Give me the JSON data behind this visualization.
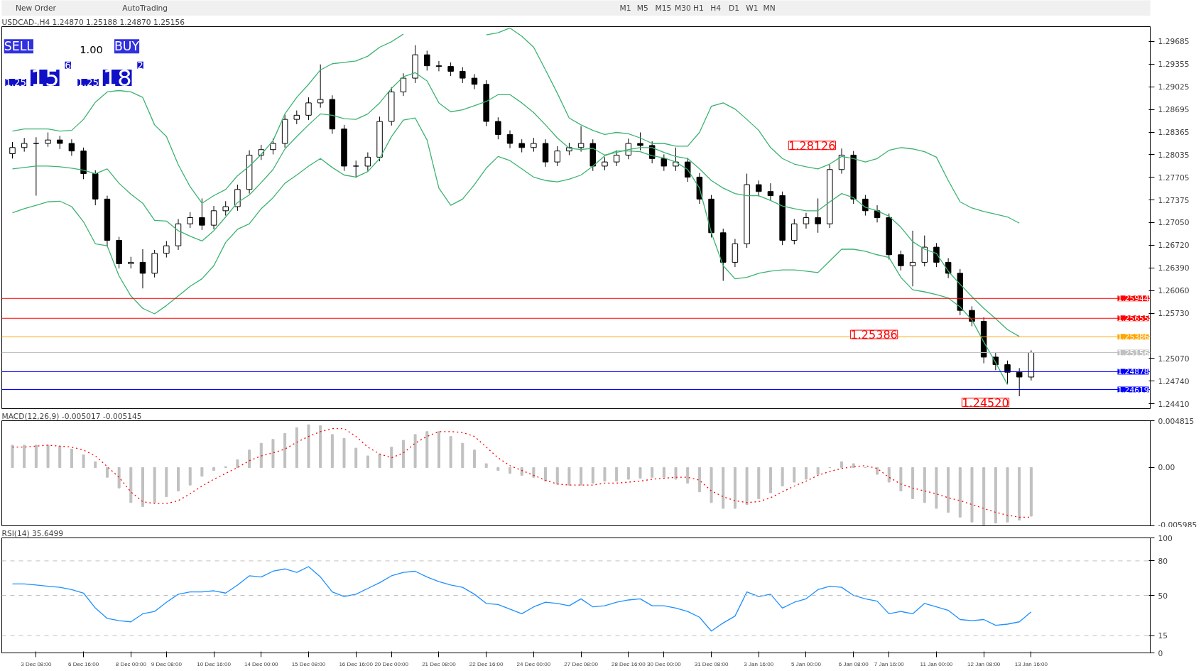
{
  "chart_data": [
    {
      "type": "other",
      "annotations": [
        "New Order",
        "AutoTrading",
        "M1",
        "M5",
        "M15",
        "M30",
        "H1",
        "H4",
        "D1",
        "W1",
        "MN"
      ]
    },
    {
      "type": "candlestick",
      "title": "USDCAD-,H4  1.24870 1.25188 1.24870 1.25156",
      "tick_labels": "y",
      "grid": false,
      "ohlc": [
        [
          1.2805,
          1.2822,
          1.2798,
          1.2814
        ],
        [
          1.2814,
          1.2828,
          1.2808,
          1.282
        ],
        [
          1.282,
          1.2829,
          1.2744,
          1.282
        ],
        [
          1.282,
          1.2836,
          1.2815,
          1.2825
        ],
        [
          1.2825,
          1.2831,
          1.2812,
          1.282
        ],
        [
          1.282,
          1.2826,
          1.2802,
          1.2809
        ],
        [
          1.2809,
          1.2814,
          1.2768,
          1.2776
        ],
        [
          1.2776,
          1.2781,
          1.273,
          1.2739
        ],
        [
          1.2739,
          1.2744,
          1.267,
          1.2679
        ],
        [
          1.2679,
          1.2684,
          1.2638,
          1.2645
        ],
        [
          1.2645,
          1.2655,
          1.2638,
          1.2647
        ],
        [
          1.2647,
          1.2666,
          1.2609,
          1.2631
        ],
        [
          1.2631,
          1.2665,
          1.2625,
          1.266
        ],
        [
          1.266,
          1.2678,
          1.2654,
          1.2671
        ],
        [
          1.2671,
          1.271,
          1.2665,
          1.2703
        ],
        [
          1.2703,
          1.272,
          1.2697,
          1.2712
        ],
        [
          1.2712,
          1.274,
          1.2694,
          1.2701
        ],
        [
          1.2701,
          1.2729,
          1.2695,
          1.2722
        ],
        [
          1.2722,
          1.2736,
          1.2715,
          1.2728
        ],
        [
          1.2728,
          1.276,
          1.2722,
          1.2753
        ],
        [
          1.2753,
          1.281,
          1.2747,
          1.2803
        ],
        [
          1.2803,
          1.2818,
          1.2796,
          1.2811
        ],
        [
          1.2811,
          1.2827,
          1.2804,
          1.282
        ],
        [
          1.282,
          1.2862,
          1.2814,
          1.2855
        ],
        [
          1.2855,
          1.2868,
          1.2848,
          1.2861
        ],
        [
          1.2861,
          1.2887,
          1.2854,
          1.2879
        ],
        [
          1.2879,
          1.2935,
          1.2872,
          1.2884
        ],
        [
          1.2884,
          1.289,
          1.2834,
          1.2841
        ],
        [
          1.2841,
          1.2847,
          1.278,
          1.2787
        ],
        [
          1.2787,
          1.2795,
          1.277,
          1.2787
        ],
        [
          1.2787,
          1.2807,
          1.278,
          1.28
        ],
        [
          1.28,
          1.2859,
          1.2794,
          1.2852
        ],
        [
          1.2852,
          1.2902,
          1.2846,
          1.2895
        ],
        [
          1.2895,
          1.2922,
          1.2889,
          1.2915
        ],
        [
          1.2915,
          1.2963,
          1.2908,
          1.2949
        ],
        [
          1.2949,
          1.2955,
          1.2926,
          1.2933
        ],
        [
          1.2933,
          1.294,
          1.2925,
          1.2932
        ],
        [
          1.2932,
          1.2938,
          1.2918,
          1.2925
        ],
        [
          1.2925,
          1.2931,
          1.2908,
          1.2915
        ],
        [
          1.2915,
          1.2921,
          1.2899,
          1.2906
        ],
        [
          1.2906,
          1.2912,
          1.2845,
          1.2852
        ],
        [
          1.2852,
          1.2858,
          1.2826,
          1.2833
        ],
        [
          1.2833,
          1.2839,
          1.2813,
          1.282
        ],
        [
          1.282,
          1.2826,
          1.2807,
          1.2814
        ],
        [
          1.2814,
          1.2828,
          1.2808,
          1.282
        ],
        [
          1.282,
          1.2826,
          1.2786,
          1.2793
        ],
        [
          1.2793,
          1.2816,
          1.2787,
          1.2809
        ],
        [
          1.2809,
          1.2821,
          1.2803,
          1.2814
        ],
        [
          1.2814,
          1.2845,
          1.2808,
          1.282
        ],
        [
          1.282,
          1.2826,
          1.278,
          1.2787
        ],
        [
          1.2787,
          1.28,
          1.2781,
          1.2793
        ],
        [
          1.2793,
          1.281,
          1.2787,
          1.2803
        ],
        [
          1.2803,
          1.2827,
          1.2797,
          1.282
        ],
        [
          1.282,
          1.2836,
          1.281,
          1.2817
        ],
        [
          1.2817,
          1.2823,
          1.2791,
          1.2798
        ],
        [
          1.2798,
          1.2804,
          1.278,
          1.2787
        ],
        [
          1.2787,
          1.2814,
          1.278,
          1.2793
        ],
        [
          1.2793,
          1.2799,
          1.2764,
          1.2771
        ],
        [
          1.2771,
          1.2777,
          1.2732,
          1.2739
        ],
        [
          1.2739,
          1.2745,
          1.2683,
          1.269
        ],
        [
          1.269,
          1.2696,
          1.262,
          1.2647
        ],
        [
          1.2647,
          1.2681,
          1.264,
          1.2674
        ],
        [
          1.2674,
          1.2776,
          1.2668,
          1.276
        ],
        [
          1.276,
          1.2766,
          1.2743,
          1.275
        ],
        [
          1.275,
          1.2762,
          1.2737,
          1.2744
        ],
        [
          1.2744,
          1.275,
          1.2672,
          1.2679
        ],
        [
          1.2679,
          1.271,
          1.2673,
          1.2703
        ],
        [
          1.2703,
          1.2719,
          1.2696,
          1.2712
        ],
        [
          1.2712,
          1.274,
          1.269,
          1.2703
        ],
        [
          1.2703,
          1.2789,
          1.2697,
          1.2782
        ],
        [
          1.2782,
          1.28126,
          1.2776,
          1.2803
        ],
        [
          1.2803,
          1.2809,
          1.2732,
          1.2739
        ],
        [
          1.2739,
          1.2745,
          1.2715,
          1.2722
        ],
        [
          1.2722,
          1.273,
          1.2705,
          1.2712
        ],
        [
          1.2712,
          1.2718,
          1.2651,
          1.2658
        ],
        [
          1.2658,
          1.2664,
          1.2635,
          1.2642
        ],
        [
          1.2642,
          1.2693,
          1.2612,
          1.2647
        ],
        [
          1.2647,
          1.2686,
          1.2641,
          1.2669
        ],
        [
          1.2669,
          1.2675,
          1.264,
          1.2647
        ],
        [
          1.2647,
          1.2653,
          1.2624,
          1.2631
        ],
        [
          1.2631,
          1.2637,
          1.257,
          1.2577
        ],
        [
          1.2577,
          1.2583,
          1.2554,
          1.2561
        ],
        [
          1.2561,
          1.2567,
          1.25,
          1.2509
        ],
        [
          1.2509,
          1.2515,
          1.249,
          1.2498
        ],
        [
          1.2498,
          1.2504,
          1.247,
          1.2487
        ],
        [
          1.2487,
          1.2493,
          1.2452,
          1.248
        ],
        [
          1.248,
          1.25188,
          1.2475,
          1.25156
        ],
        null,
        null,
        null,
        null,
        null,
        null,
        null,
        null,
        null,
        null
      ],
      "series": [
        {
          "type": "line",
          "color": "#3cb371",
          "values": [
            1.2838,
            1.2841,
            1.2841,
            1.2841,
            1.2838,
            1.2839,
            1.2855,
            1.288,
            1.2895,
            1.2897,
            1.2895,
            1.2887,
            1.2847,
            1.283,
            1.2789,
            1.2757,
            1.2733,
            1.2744,
            1.2753,
            1.2773,
            1.2787,
            1.2804,
            1.2824,
            1.2863,
            1.2887,
            1.2906,
            1.2927,
            1.2936,
            1.2938,
            1.294,
            1.2947,
            1.296,
            1.2968,
            1.2979,
            null,
            null,
            null,
            null,
            null,
            null,
            1.2978,
            1.2981,
            1.2988,
            1.2976,
            1.296,
            1.2927,
            1.2893,
            1.2857,
            1.2847,
            1.2839,
            1.2833,
            1.2836,
            1.2834,
            1.2828,
            1.282,
            1.282,
            1.2816,
            1.2816,
            1.2836,
            1.2874,
            1.2879,
            1.287,
            1.2855,
            1.2839,
            1.2814,
            1.2798,
            1.279,
            1.2786,
            1.2783,
            1.279,
            1.2801,
            1.2798,
            1.2793,
            1.2798,
            1.281,
            1.2814,
            1.2812,
            1.2808,
            1.28,
            1.2766,
            1.2735,
            1.2726,
            1.2721,
            1.2717,
            1.2713,
            1.2704,
            null,
            null,
            null,
            null,
            null,
            null,
            null,
            null,
            null,
            null,
            null
          ]
        },
        {
          "type": "line",
          "color": "#3cb371",
          "values": [
            1.2783,
            1.2785,
            1.2787,
            1.2787,
            1.2786,
            1.2784,
            1.2781,
            1.2776,
            1.2783,
            1.2762,
            1.2746,
            1.2733,
            1.2708,
            1.2707,
            1.2693,
            1.2685,
            1.2678,
            1.2693,
            1.2713,
            1.2734,
            1.2745,
            1.2763,
            1.2782,
            1.2812,
            1.283,
            1.2847,
            1.2863,
            1.2861,
            1.2856,
            1.2855,
            1.2863,
            1.2879,
            1.29,
            1.2917,
            1.2923,
            1.2911,
            1.2879,
            1.2866,
            1.2869,
            1.2875,
            1.2881,
            1.2891,
            1.2891,
            1.2879,
            1.2865,
            1.2847,
            1.2828,
            1.2813,
            1.2811,
            1.2813,
            1.2803,
            1.2807,
            1.2811,
            1.2814,
            1.2814,
            1.2807,
            1.2801,
            1.2798,
            1.2783,
            1.2766,
            1.2755,
            1.2747,
            1.2744,
            1.2744,
            1.2737,
            1.2729,
            1.2725,
            1.2722,
            1.2722,
            1.2735,
            1.2747,
            1.2741,
            1.2727,
            1.2722,
            1.2714,
            1.2698,
            1.2677,
            1.2666,
            1.266,
            1.2634,
            1.2615,
            1.2597,
            1.258,
            1.2565,
            1.2549,
            1.2539,
            null,
            null,
            null,
            null,
            null,
            null,
            null,
            null,
            null,
            null,
            null
          ]
        },
        {
          "type": "line",
          "color": "#3cb371",
          "values": [
            1.2719,
            1.2725,
            1.273,
            1.2735,
            1.2736,
            1.2728,
            1.2706,
            1.2674,
            1.2671,
            1.2627,
            1.2598,
            1.258,
            1.2572,
            1.2584,
            1.2598,
            1.2612,
            1.2623,
            1.2642,
            1.2676,
            1.2695,
            1.2703,
            1.2725,
            1.2741,
            1.2762,
            1.2774,
            1.2787,
            1.2798,
            1.2785,
            1.2774,
            1.2771,
            1.2779,
            1.2798,
            1.283,
            1.2854,
            1.2857,
            1.2825,
            1.2755,
            1.273,
            1.2739,
            1.276,
            1.2784,
            1.2801,
            1.2795,
            1.2783,
            1.2771,
            1.2766,
            1.2764,
            1.2768,
            1.2774,
            1.2787,
            1.2802,
            1.2809,
            1.2809,
            1.2808,
            1.2802,
            1.2799,
            1.2793,
            1.2782,
            1.2755,
            1.269,
            1.2642,
            1.2623,
            1.2625,
            1.2631,
            1.2634,
            1.2636,
            1.2636,
            1.2634,
            1.2632,
            1.2649,
            1.2666,
            1.2666,
            1.2663,
            1.2658,
            1.2654,
            1.2625,
            1.2607,
            1.2604,
            1.26,
            1.2595,
            1.2582,
            1.2563,
            1.2531,
            1.2501,
            1.2469,
            null,
            null,
            null,
            null,
            null,
            null,
            null,
            null,
            null,
            null,
            null,
            null
          ]
        }
      ],
      "ylim": [
        1.2434,
        1.299
      ],
      "yticks": [
        {
          "value": 1.2441,
          "label": "1.24410"
        },
        {
          "value": 1.2474,
          "label": "1.24740"
        },
        {
          "value": 1.2507,
          "label": "1.25070"
        },
        {
          "value": 1.2573,
          "label": "1.25730"
        },
        {
          "value": 1.2606,
          "label": "1.26060"
        },
        {
          "value": 1.2639,
          "label": "1.26390"
        },
        {
          "value": 1.2672,
          "label": "1.26720"
        },
        {
          "value": 1.2705,
          "label": "1.27050"
        },
        {
          "value": 1.27375,
          "label": "1.27375"
        },
        {
          "value": 1.27705,
          "label": "1.27705"
        },
        {
          "value": 1.28035,
          "label": "1.28035"
        },
        {
          "value": 1.28365,
          "label": "1.28365"
        },
        {
          "value": 1.28695,
          "label": "1.28695"
        },
        {
          "value": 1.29025,
          "label": "1.29025"
        },
        {
          "value": 1.29355,
          "label": "1.29355"
        },
        {
          "value": 1.29685,
          "label": "1.29685"
        }
      ],
      "ref_lines": [
        {
          "axis": "y",
          "value": 1.25944,
          "label": "1.25944",
          "color": "#ff0000"
        },
        {
          "axis": "y",
          "value": 1.25655,
          "label": "1.25655",
          "color": "#ff0000"
        },
        {
          "axis": "y",
          "value": 1.25386,
          "label": "1.25386",
          "color": "#ffa500"
        },
        {
          "axis": "y",
          "value": 1.25156,
          "label": "1.25156",
          "color": "#c0c0c0"
        },
        {
          "axis": "y",
          "value": 1.24878,
          "label": "1.24878",
          "color": "#0000ff"
        },
        {
          "axis": "y",
          "value": 1.24619,
          "label": "1.24619",
          "color": "#0000ff"
        }
      ],
      "annotations": [
        "SELL",
        "1.00",
        "BUY",
        "1.25",
        "15",
        "6",
        "1.25",
        "18",
        "2",
        "1.28126",
        "1.25386",
        "1.24520"
      ]
    },
    {
      "type": "bar",
      "title": "MACD(12,26,9) -0.005017 -0.005145",
      "tick_labels": "y",
      "grid": false,
      "series": [
        {
          "type": "bar",
          "color": "#c0c0c0",
          "values": [
            0.0023,
            0.0023,
            0.0023,
            0.0023,
            0.0022,
            0.0019,
            0.0013,
            0.0006,
            -0.001,
            -0.0021,
            -0.0036,
            -0.004,
            -0.0036,
            -0.003,
            -0.0024,
            -0.0018,
            -0.0009,
            -0.0003,
            0.0001,
            0.0008,
            0.0018,
            0.0025,
            0.0029,
            0.0035,
            0.0041,
            0.0044,
            0.0043,
            0.0034,
            0.003,
            0.002,
            0.0012,
            0.0014,
            0.0021,
            0.0028,
            0.0034,
            0.0037,
            0.0037,
            0.0032,
            0.0025,
            0.0018,
            0.0004,
            -0.0003,
            -0.0006,
            -0.0008,
            -0.001,
            -0.0014,
            -0.0017,
            -0.0018,
            -0.0018,
            -0.0016,
            -0.0014,
            -0.0014,
            -0.0012,
            -0.0011,
            -0.001,
            -0.001,
            -0.0012,
            -0.0016,
            -0.0025,
            -0.0036,
            -0.0042,
            -0.0042,
            -0.0038,
            -0.0032,
            -0.0026,
            -0.0019,
            -0.0015,
            -0.0012,
            -0.0007,
            0.0,
            0.0006,
            0.0004,
            0.0,
            -0.0007,
            -0.0015,
            -0.0024,
            -0.0032,
            -0.0036,
            -0.0042,
            -0.0046,
            -0.0051,
            -0.0056,
            -0.0059,
            -0.0057,
            -0.0056,
            -0.0054,
            -0.005,
            null,
            null,
            null,
            null,
            null,
            null,
            null,
            null,
            null,
            null
          ]
        },
        {
          "type": "line",
          "color": "#ff0000",
          "line_style": "dotted",
          "values": [
            0.0021,
            0.0021,
            0.0022,
            0.0023,
            0.0022,
            0.0021,
            0.0018,
            0.0012,
            0.0001,
            -0.001,
            -0.0025,
            -0.0035,
            -0.0037,
            -0.0037,
            -0.0034,
            -0.0027,
            -0.0019,
            -0.0012,
            -0.0006,
            0.0,
            0.0007,
            0.0012,
            0.0015,
            0.0019,
            0.0026,
            0.0032,
            0.0037,
            0.004,
            0.004,
            0.0032,
            0.0021,
            0.0014,
            0.001,
            0.0015,
            0.0025,
            0.0032,
            0.0037,
            0.0037,
            0.0036,
            0.0032,
            0.0021,
            0.001,
            0.0002,
            -0.0003,
            -0.0008,
            -0.0013,
            -0.0017,
            -0.0018,
            -0.0018,
            -0.0018,
            -0.0016,
            -0.0016,
            -0.0015,
            -0.0014,
            -0.0012,
            -0.0011,
            -0.001,
            -0.001,
            -0.0013,
            -0.0024,
            -0.003,
            -0.0034,
            -0.0036,
            -0.0035,
            -0.0031,
            -0.0025,
            -0.0019,
            -0.0014,
            -0.0008,
            -0.0004,
            -0.0001,
            0.0001,
            0.0002,
            -0.0001,
            -0.001,
            -0.0017,
            -0.0021,
            -0.0024,
            -0.0027,
            -0.0031,
            -0.0034,
            -0.0038,
            -0.0042,
            -0.0046,
            -0.0049,
            -0.0051,
            -0.0051,
            null,
            null,
            null,
            null,
            null,
            null,
            null,
            null,
            null,
            null
          ]
        }
      ],
      "ylim": [
        -0.005985,
        0.004815
      ],
      "yticks": [
        {
          "value": -0.005985,
          "label": "-0.005985"
        },
        {
          "value": 0,
          "label": "0.00"
        },
        {
          "value": 0.004815,
          "label": "0.004815"
        }
      ]
    },
    {
      "type": "line",
      "title": "RSI(14) 35.6499",
      "grid": false,
      "categories": [
        null,
        null,
        "3 Dec 08:00",
        null,
        null,
        null,
        "6 Dec 16:00",
        null,
        null,
        null,
        "8 Dec 00:00",
        null,
        null,
        "9 Dec 08:00",
        null,
        null,
        null,
        "10 Dec 16:00",
        null,
        null,
        null,
        "14 Dec 00:00",
        null,
        null,
        null,
        "15 Dec 08:00",
        null,
        null,
        null,
        "16 Dec 16:00",
        null,
        null,
        "20 Dec 00:00",
        null,
        null,
        null,
        "21 Dec 08:00",
        null,
        null,
        null,
        "22 Dec 16:00",
        null,
        null,
        null,
        "24 Dec 00:00",
        null,
        null,
        null,
        "27 Dec 08:00",
        null,
        null,
        null,
        "28 Dec 16:00",
        null,
        null,
        "30 Dec 00:00",
        null,
        null,
        null,
        "31 Dec 08:00",
        null,
        null,
        null,
        "3 Jan 16:00",
        null,
        null,
        null,
        "5 Jan 00:00",
        null,
        null,
        null,
        "6 Jan 08:00",
        null,
        null,
        "7 Jan 16:00",
        null,
        null,
        null,
        "11 Jan 00:00",
        null,
        null,
        null,
        "12 Jan 08:00",
        null,
        null,
        null,
        "13 Jan 16:00",
        null,
        null,
        null,
        null,
        null,
        null,
        null,
        null,
        null,
        null
      ],
      "series": [
        {
          "color": "#1e90ff",
          "values": [
            60,
            60,
            59,
            58,
            57,
            55,
            52,
            39,
            30,
            28,
            27,
            34,
            36,
            44,
            51,
            53,
            53,
            54,
            52,
            59,
            67,
            66,
            71,
            73,
            70,
            75,
            66,
            53,
            49,
            51,
            56,
            61,
            67,
            70,
            71,
            66,
            62,
            59,
            57,
            51,
            43,
            42,
            38,
            34,
            40,
            44,
            43,
            41,
            47,
            40,
            41,
            44,
            46,
            47,
            41,
            41,
            39,
            36,
            31,
            19,
            26,
            32,
            53,
            49,
            51,
            39,
            44,
            47,
            55,
            58,
            57,
            50,
            47,
            45,
            34,
            36,
            34,
            43,
            40,
            37,
            29,
            28,
            29,
            24,
            25,
            27,
            35.6,
            null,
            null,
            null,
            null,
            null,
            null,
            null,
            null,
            null,
            null
          ]
        }
      ],
      "ylim": [
        0,
        100
      ],
      "yticks": [
        0,
        15,
        50,
        80,
        100
      ],
      "ref_lines": [
        {
          "axis": "y",
          "value": 80,
          "color": "#c0c0c0",
          "line_style": "dashed"
        },
        {
          "axis": "y",
          "value": 50,
          "color": "#c0c0c0",
          "line_style": "dashed"
        },
        {
          "axis": "y",
          "value": 15,
          "color": "#c0c0c0",
          "line_style": "dashed"
        }
      ]
    }
  ]
}
